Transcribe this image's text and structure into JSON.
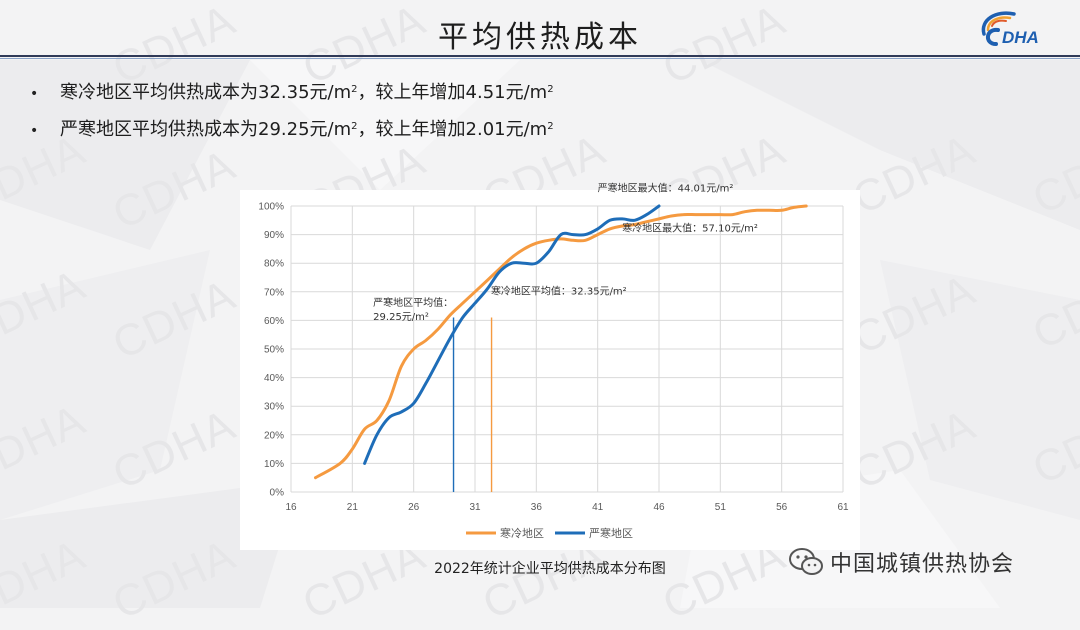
{
  "title": "平均供热成本",
  "logo_text": "DHA",
  "watermark": "CDHA",
  "bullets": [
    {
      "marker": "•",
      "text": "寒冷地区平均供热成本为32.35元/m",
      "sup": "2",
      "text2": "，较上年增加4.51元/m",
      "sup2": "2"
    },
    {
      "marker": "•",
      "text": "严寒地区平均供热成本为29.25元/m",
      "sup": "2",
      "text2": "，较上年增加2.01元/m",
      "sup2": "2"
    }
  ],
  "caption": "2022年统计企业平均供热成本分布图",
  "wechat_label": "中国城镇供热协会",
  "chart_data": {
    "type": "line",
    "x_ticks": [
      16,
      21,
      26,
      31,
      36,
      41,
      46,
      51,
      56,
      61
    ],
    "y_ticks": [
      "0%",
      "10%",
      "20%",
      "30%",
      "40%",
      "50%",
      "60%",
      "70%",
      "80%",
      "90%",
      "100%"
    ],
    "xlim": [
      16,
      61
    ],
    "ylim": [
      0,
      100
    ],
    "legend_position": "bottom",
    "series": [
      {
        "name": "寒冷地区",
        "color": "#f59a40",
        "x": [
          18,
          20,
          21,
          22,
          23,
          24,
          25,
          26,
          27,
          28,
          29,
          30,
          31,
          32,
          33,
          34,
          35,
          36,
          37,
          38,
          39,
          40,
          41,
          42,
          43,
          44,
          45,
          46,
          47,
          48,
          49,
          50,
          51,
          52,
          53,
          54,
          55,
          56,
          57,
          58
        ],
        "y": [
          5,
          10,
          15,
          22,
          25,
          32,
          44,
          50,
          53,
          57,
          62,
          66,
          70,
          74,
          78,
          82,
          85,
          87,
          88,
          88.5,
          88,
          88,
          90,
          92,
          93,
          93.5,
          94.5,
          95.5,
          96.5,
          97,
          97,
          97,
          97,
          97,
          98,
          98.5,
          98.5,
          98.5,
          99.5,
          100
        ]
      },
      {
        "name": "严寒地区",
        "color": "#1e6db8",
        "x": [
          22,
          23,
          24,
          25,
          26,
          27,
          28,
          29,
          30,
          31,
          32,
          33,
          34,
          35,
          36,
          37,
          38,
          39,
          40,
          41,
          42,
          43,
          44,
          45,
          46
        ],
        "y": [
          10,
          20,
          26,
          28,
          31,
          38,
          46,
          54,
          61,
          66,
          71,
          77,
          80,
          80,
          80,
          84,
          90,
          90,
          90,
          92,
          95,
          95.5,
          95,
          97,
          100
        ]
      }
    ],
    "vertical_markers": [
      {
        "x": 29.25,
        "color": "#1e6db8",
        "series": "严寒地区"
      },
      {
        "x": 32.35,
        "color": "#f59a40",
        "series": "寒冷地区"
      }
    ],
    "annotations": [
      {
        "lines": [
          "严寒地区最大值：44.01元/m²"
        ],
        "x": 41,
        "y": 105
      },
      {
        "lines": [
          "寒冷地区最大值：57.10元/m²"
        ],
        "x": 43,
        "y": 91
      },
      {
        "lines": [
          "寒冷地区平均值：32.35元/m²"
        ],
        "x": 32.3,
        "y": 69
      },
      {
        "lines": [
          "严寒地区平均值：",
          "29.25元/m²"
        ],
        "x": 22.7,
        "y": 65
      }
    ]
  }
}
